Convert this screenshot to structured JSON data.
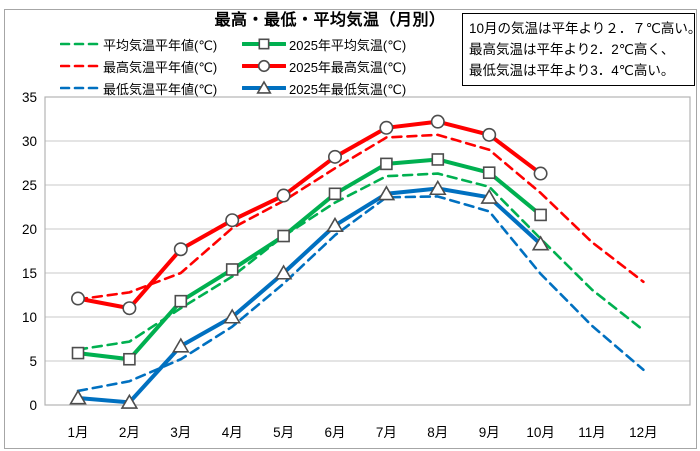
{
  "title": "最高・最低・平均気温（月別）",
  "annotation": {
    "lines": [
      "10月の気温は平年より２．７℃高い。",
      "最高気温は平年より2．2℃高く、",
      "最低気温は平年より3．4℃高い。"
    ]
  },
  "colors": {
    "average": "#00B050",
    "high": "#FF0000",
    "low": "#0070C0",
    "grid": "#c9c9c9",
    "plot_border": "#b3b3b3",
    "marker_outline": "#4d4d4d"
  },
  "chart_data": {
    "type": "line",
    "title": "最高・最低・平均気温（月別）",
    "categories": [
      "1月",
      "2月",
      "3月",
      "4月",
      "5月",
      "6月",
      "7月",
      "8月",
      "9月",
      "10月",
      "11月",
      "12月"
    ],
    "xlabel": "",
    "ylabel": "",
    "ylim": [
      0,
      35
    ],
    "ytick_interval": 5,
    "yticks": [
      0,
      5,
      10,
      15,
      20,
      25,
      30,
      35
    ],
    "grid": "horizontal",
    "legend_position": "top-left, two columns",
    "series": [
      {
        "name": "平均気温平年値(℃)",
        "color": "#00B050",
        "style": "dashed",
        "marker": "none",
        "values": [
          6.3,
          7.2,
          11.0,
          14.6,
          19.2,
          23.0,
          26.0,
          26.3,
          24.8,
          18.9,
          13.1,
          8.5
        ]
      },
      {
        "name": "2025年平均気温(℃)",
        "color": "#00B050",
        "style": "solid",
        "marker": "square",
        "values": [
          5.9,
          5.2,
          11.8,
          15.4,
          19.2,
          24.0,
          27.4,
          27.9,
          26.4,
          21.6
        ]
      },
      {
        "name": "最高気温平年値(℃)",
        "color": "#FF0000",
        "style": "dashed",
        "marker": "none",
        "values": [
          12.0,
          12.8,
          15.0,
          20.1,
          23.2,
          26.9,
          30.4,
          30.7,
          29.0,
          24.1,
          18.5,
          14.0
        ]
      },
      {
        "name": "2025年最高気温(℃)",
        "color": "#FF0000",
        "style": "solid",
        "marker": "circle",
        "values": [
          12.1,
          11.0,
          17.7,
          21.0,
          23.8,
          28.2,
          31.5,
          32.2,
          30.7,
          26.3
        ]
      },
      {
        "name": "最低気温平年値(℃)",
        "color": "#0070C0",
        "style": "dashed",
        "marker": "none",
        "values": [
          1.6,
          2.7,
          5.2,
          8.9,
          13.8,
          19.3,
          23.6,
          23.7,
          22.0,
          14.9,
          9.0,
          4.0
        ]
      },
      {
        "name": "2025年最低気温(℃)",
        "color": "#0070C0",
        "style": "solid",
        "marker": "triangle",
        "values": [
          0.8,
          0.3,
          6.7,
          10.0,
          15.0,
          20.4,
          24.0,
          24.6,
          23.6,
          18.3
        ]
      }
    ]
  }
}
